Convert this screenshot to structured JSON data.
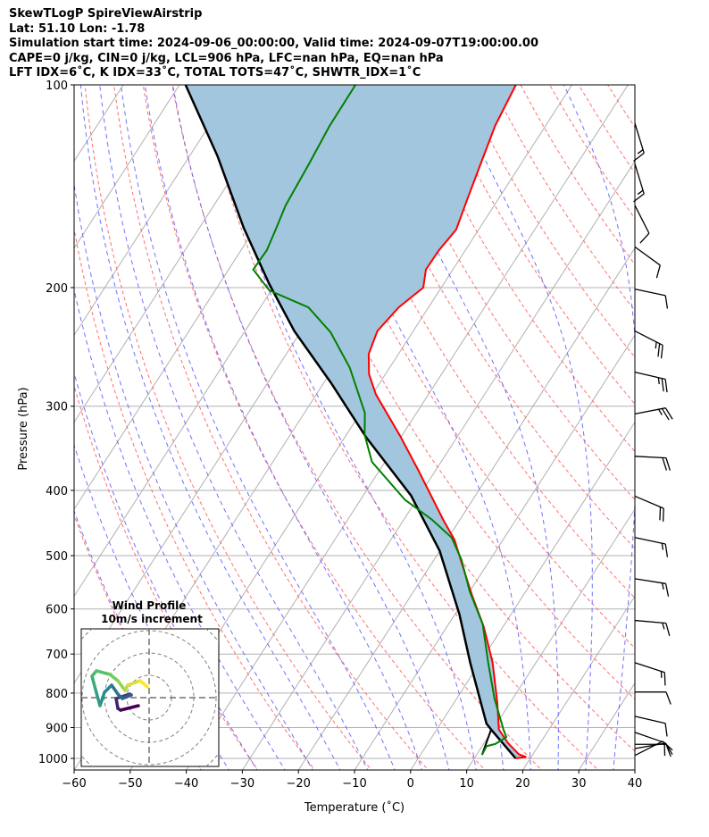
{
  "header": {
    "title": "SkewTLogP SpireViewAirstrip",
    "location": "Lat: 51.10   Lon: -1.78",
    "times": "Simulation start time: 2024-09-06_00:00:00, Valid time: 2024-09-07T19:00:00.00",
    "indices1": "CAPE=0 j/kg, CIN=0 j/kg, LCL=906 hPa, LFC=nan hPa, EQ=nan hPa",
    "indices2": "LFT IDX=6˚C, K IDX=33˚C, TOTAL TOTS=47˚C, SHWTR_IDX=1˚C"
  },
  "chart_data": {
    "type": "line",
    "subtype": "skew-T log-P",
    "xlabel": "Temperature (˚C)",
    "ylabel": "Pressure (hPa)",
    "xlim": [
      -60,
      40
    ],
    "ylim": [
      1040,
      100
    ],
    "x_ticks": [
      -60,
      -50,
      -40,
      -30,
      -20,
      -10,
      0,
      10,
      20,
      30,
      40
    ],
    "x_tick_labels": [
      "−60",
      "−50",
      "−40",
      "−30",
      "−20",
      "−10",
      "0",
      "10",
      "20",
      "30",
      "40"
    ],
    "y_ticks": [
      100,
      200,
      300,
      400,
      500,
      600,
      700,
      800,
      900,
      1000
    ],
    "y_tick_labels": [
      "100",
      "200",
      "300",
      "400",
      "500",
      "600",
      "700",
      "800",
      "900",
      "1000"
    ],
    "grid": true,
    "colors": {
      "temperature": "#ff0000",
      "dewpoint": "#008000",
      "parcel": "#000000",
      "fill": "#a3c6df",
      "isotherm": "#b0b0b0",
      "dry_adiabat": "#ff6060",
      "moist_adiabat": "#6060ff"
    },
    "temperature": {
      "name": "Temperature",
      "p": [
        100,
        115,
        131,
        147,
        164,
        176,
        188,
        200,
        214,
        232,
        251,
        269,
        288,
        333,
        374,
        442,
        474,
        523,
        573,
        638,
        721,
        826,
        906,
        949,
        986,
        995,
        1000
      ],
      "T": [
        -60,
        -59,
        -57.2,
        -55.6,
        -54,
        -54.7,
        -54.8,
        -53.2,
        -55.3,
        -56.4,
        -55.3,
        -52.9,
        -49.4,
        -40.1,
        -33,
        -23,
        -18.6,
        -13.7,
        -9.1,
        -3.4,
        2.3,
        7.7,
        11.1,
        14.3,
        17.5,
        19.1,
        17.4
      ]
    },
    "dewpoint": {
      "name": "Dewpoint",
      "p": [
        100,
        115,
        131,
        151,
        164,
        176,
        188,
        202,
        214,
        233,
        263,
        307,
        331,
        363,
        413,
        442,
        470,
        507,
        565,
        632,
        721,
        814,
        906,
        930,
        952,
        959,
        988
      ],
      "T": [
        -88.6,
        -88.5,
        -87.8,
        -87.2,
        -86.2,
        -85.4,
        -85.6,
        -80.3,
        -71.4,
        -64.6,
        -57.1,
        -49.2,
        -46.7,
        -42.3,
        -32.1,
        -25,
        -19.4,
        -15.1,
        -10,
        -3.9,
        1.5,
        6.7,
        11.9,
        13.3,
        12.1,
        10.8,
        11.0
      ]
    },
    "parcel": {
      "name": "Parcel profile",
      "p": [
        1000,
        906,
        888,
        721,
        611,
        492,
        407,
        334,
        277,
        232,
        197.5,
        163,
        127.6,
        100
      ],
      "T": [
        17.4,
        9.7,
        8.2,
        -1.7,
        -9.2,
        -20,
        -31.5,
        -46.1,
        -58.7,
        -71.2,
        -81.1,
        -92.1,
        -105,
        -118.9
      ]
    },
    "lcl_line": {
      "p": [
        988,
        906
      ],
      "T": [
        11.0,
        9.7
      ]
    },
    "isotherms": [
      -140,
      -130,
      -120,
      -110,
      -100,
      -90,
      -80,
      -70,
      -60,
      -50,
      -40,
      -30,
      -20,
      -10,
      0,
      10,
      20,
      30,
      40
    ],
    "dry_adiabats_t0": [
      -40,
      -30,
      -20,
      -10,
      0,
      10,
      20,
      30,
      40,
      50,
      60,
      70,
      80,
      90,
      100,
      110,
      120,
      130,
      140,
      150,
      160,
      170,
      180,
      190,
      200
    ],
    "moist_adiabats_t0": [
      -40,
      -35,
      -30,
      -25,
      -20,
      -15,
      -10,
      -5,
      0,
      5,
      10,
      15,
      20,
      25,
      30,
      35
    ],
    "wind_barbs": [
      {
        "p": 114,
        "dir": 163,
        "kt": 15
      },
      {
        "p": 131,
        "dir": 163,
        "kt": 15
      },
      {
        "p": 151,
        "dir": 153,
        "kt": 10
      },
      {
        "p": 174,
        "dir": 126,
        "kt": 10
      },
      {
        "p": 201,
        "dir": 102,
        "kt": 10
      },
      {
        "p": 232,
        "dir": 117,
        "kt": 25
      },
      {
        "p": 267,
        "dir": 103,
        "kt": 25
      },
      {
        "p": 308,
        "dir": 79,
        "kt": 25
      },
      {
        "p": 356,
        "dir": 93,
        "kt": 20
      },
      {
        "p": 408,
        "dir": 113,
        "kt": 20
      },
      {
        "p": 470,
        "dir": 102,
        "kt": 15
      },
      {
        "p": 541,
        "dir": 99,
        "kt": 15
      },
      {
        "p": 624,
        "dir": 95,
        "kt": 15
      },
      {
        "p": 721,
        "dir": 108,
        "kt": 15
      },
      {
        "p": 797,
        "dir": 90,
        "kt": 10
      },
      {
        "p": 866,
        "dir": 103,
        "kt": 10
      },
      {
        "p": 915,
        "dir": 109,
        "kt": 10
      },
      {
        "p": 953,
        "dir": 90,
        "kt": 10
      },
      {
        "p": 967,
        "dir": 80,
        "kt": 10
      },
      {
        "p": 990,
        "dir": 63,
        "kt": 10
      }
    ],
    "hodograph": {
      "title": "Wind Profile",
      "subtitle": "10m/s increment",
      "ring_step_ms": 10,
      "u": [
        -4.8,
        -12.8,
        -14,
        -14.8,
        -8.8,
        -8,
        -12,
        -14,
        -16.8,
        -20,
        -22,
        -24,
        -25.6,
        -23.6,
        -17.6,
        -14,
        -10.8,
        -9.6,
        -4,
        -0.8
      ],
      "v": [
        -3.6,
        -5.6,
        -4.8,
        -0.4,
        1.6,
        1.2,
        -0.4,
        1.6,
        5.6,
        2.4,
        -3.6,
        3.6,
        9.6,
        12,
        10.4,
        7.6,
        3.2,
        5.6,
        7.6,
        4.8
      ]
    }
  }
}
